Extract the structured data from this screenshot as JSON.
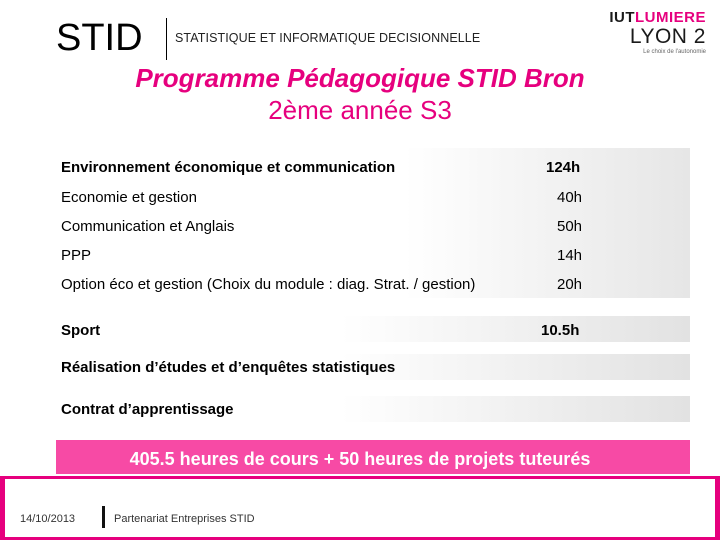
{
  "header": {
    "logo": "STID",
    "subtitle": "STATISTIQUE ET INFORMATIQUE DECISIONNELLE",
    "partner_logo": {
      "line1_a": "IUT",
      "line1_b": "LUMIERE",
      "line2": "LYON 2",
      "line3": "Le choix de l'autonomie"
    },
    "colors": {
      "accent": "#e6007e",
      "total_bg": "#f74aa5"
    }
  },
  "title": "Programme Pédagogique STID Bron",
  "subtitle": "2ème année S3",
  "rows": [
    {
      "label": "Environnement économique et communication",
      "hours": "124h",
      "bold": true
    },
    {
      "label": "Economie et gestion",
      "hours": "40h",
      "bold": false
    },
    {
      "label": "Communication et Anglais",
      "hours": "50h",
      "bold": false
    },
    {
      "label": "PPP",
      "hours": "14h",
      "bold": false
    },
    {
      "label": "Option éco et gestion (Choix du module : diag. Strat. / gestion)",
      "hours": "20h",
      "bold": false
    }
  ],
  "sport": {
    "label": "Sport",
    "hours": "10.5h"
  },
  "etudes": {
    "label": "Réalisation d’études et d’enquêtes statistiques"
  },
  "contrat": {
    "label": "Contrat d’apprentissage"
  },
  "total": "405.5 heures de cours + 50 heures de projets tuteurés",
  "footer": {
    "date": "14/10/2013",
    "text": "Partenariat Entreprises STID"
  }
}
